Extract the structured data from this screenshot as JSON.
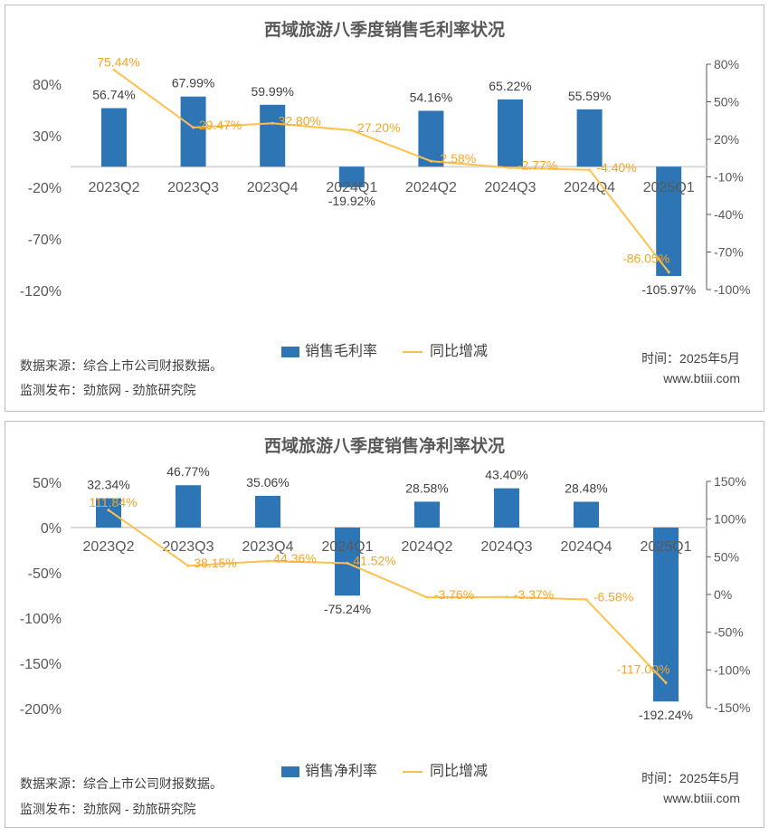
{
  "chart_data": [
    {
      "type": "bar+line",
      "title": "西域旅游八季度销售毛利率状况",
      "categories": [
        "2023Q2",
        "2023Q3",
        "2023Q4",
        "2024Q1",
        "2024Q2",
        "2024Q3",
        "2024Q4",
        "2025Q1"
      ],
      "series": [
        {
          "name": "销售毛利率",
          "type": "bar",
          "axis": "left",
          "values": [
            56.74,
            67.99,
            59.99,
            -19.92,
            54.16,
            65.22,
            55.59,
            -105.97
          ]
        },
        {
          "name": "同比增减",
          "type": "line",
          "axis": "right",
          "values": [
            75.44,
            29.47,
            32.8,
            27.2,
            2.58,
            -2.77,
            -4.4,
            -86.05
          ]
        }
      ],
      "left_axis": {
        "range": [
          -120,
          80
        ],
        "ticks": [
          80,
          30,
          -20,
          -70,
          -120
        ]
      },
      "right_axis": {
        "range": [
          -100,
          80
        ],
        "ticks": [
          80,
          50,
          20,
          -10,
          -40,
          -70,
          -100
        ]
      },
      "legend": "bottom",
      "source": "数据来源：综合上市公司财报数据。",
      "publisher": "监测发布：劲旅网 - 劲旅研究院",
      "date": "时间：2025年5月",
      "site": "www.btiii.com"
    },
    {
      "type": "bar+line",
      "title": "西域旅游八季度销售净利率状况",
      "categories": [
        "2023Q2",
        "2023Q3",
        "2023Q4",
        "2024Q1",
        "2024Q2",
        "2024Q3",
        "2024Q4",
        "2025Q1"
      ],
      "series": [
        {
          "name": "销售净利率",
          "type": "bar",
          "axis": "left",
          "values": [
            32.34,
            46.77,
            35.06,
            -75.24,
            28.58,
            43.4,
            28.48,
            -192.24
          ]
        },
        {
          "name": "同比增减",
          "type": "line",
          "axis": "right",
          "values": [
            111.84,
            38.15,
            44.36,
            41.52,
            -3.76,
            -3.37,
            -6.58,
            -117.0
          ]
        }
      ],
      "left_axis": {
        "range": [
          -200,
          50
        ],
        "ticks": [
          50,
          0,
          -50,
          -100,
          -150,
          -200
        ]
      },
      "right_axis": {
        "range": [
          -150,
          150
        ],
        "ticks": [
          150,
          100,
          50,
          0,
          -50,
          -100,
          -150
        ]
      },
      "legend": "bottom",
      "source": "数据来源：综合上市公司财报数据。",
      "publisher": "监测发布：劲旅网 - 劲旅研究院",
      "date": "时间：2025年5月",
      "site": "www.btiii.com"
    }
  ],
  "colors": {
    "bar": "#2E75B6",
    "line": "#FFC04D",
    "line_label": "#F5A623"
  }
}
